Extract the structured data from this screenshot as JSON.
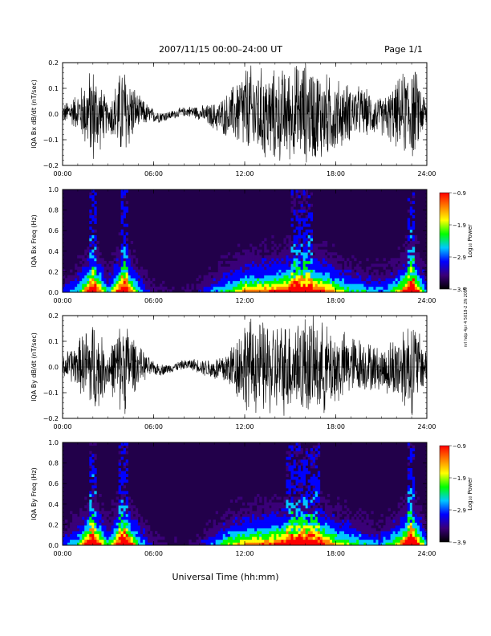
{
  "header": {
    "title": "2007/11/15  00:00–24:00 UT",
    "page": "Page 1/1"
  },
  "side_note": "nrl hdp 4pr 4 5018-2 2N 2019",
  "colors": {
    "trace": "#000000",
    "spectrogram_background": "#22004a",
    "colormap": [
      "#000000",
      "#3a0078",
      "#0000ff",
      "#00c8ff",
      "#00ff00",
      "#ffff00",
      "#ff8000",
      "#ff0000"
    ]
  },
  "chart_data": [
    {
      "type": "line",
      "ylabel": "IQA Bx dB/dt (nT/sec)",
      "xticks": [
        "00:00",
        "06:00",
        "12:00",
        "18:00",
        "24:00"
      ],
      "yticks": [
        "0.2",
        "0.1",
        "0.0",
        "−0.1",
        "−0.2"
      ],
      "xlim": [
        0,
        24
      ],
      "ylim": [
        -0.2,
        0.2
      ],
      "x": [
        0,
        1,
        2,
        3,
        4,
        5,
        6,
        7,
        8,
        9,
        10,
        11,
        12,
        13,
        14,
        15,
        16,
        17,
        18,
        19,
        20,
        21,
        22,
        23,
        24
      ],
      "envelope": [
        0.04,
        0.08,
        0.22,
        0.06,
        0.22,
        0.07,
        0.03,
        0.02,
        0.02,
        0.03,
        0.06,
        0.1,
        0.2,
        0.2,
        0.2,
        0.2,
        0.22,
        0.2,
        0.16,
        0.12,
        0.1,
        0.08,
        0.14,
        0.22,
        0.06
      ]
    },
    {
      "type": "heatmap",
      "ylabel": "IQA Bx Freq (Hz)",
      "xticks": [
        "00:00",
        "06:00",
        "12:00",
        "18:00",
        "24:00"
      ],
      "yticks": [
        "1.0",
        "0.8",
        "0.6",
        "0.4",
        "0.2",
        "0.0"
      ],
      "xlim": [
        0,
        24
      ],
      "ylim": [
        0.0,
        1.0
      ],
      "colorbar": {
        "label": "Log₁₀ Power",
        "ticks": [
          "−0.9",
          "−1.9",
          "−2.9",
          "−3.9"
        ],
        "range": [
          -3.9,
          -0.9
        ]
      },
      "activity_x": [
        0,
        1,
        2,
        3,
        4,
        5,
        6,
        7,
        8,
        9,
        10,
        11,
        12,
        13,
        14,
        15,
        16,
        17,
        18,
        19,
        20,
        21,
        22,
        23,
        24
      ],
      "activity": [
        0.2,
        0.35,
        0.9,
        0.3,
        0.95,
        0.35,
        0.15,
        0.1,
        0.1,
        0.15,
        0.3,
        0.45,
        0.6,
        0.65,
        0.7,
        0.8,
        0.85,
        0.75,
        0.55,
        0.4,
        0.35,
        0.3,
        0.45,
        0.95,
        0.25
      ]
    },
    {
      "type": "line",
      "ylabel": "IQA By dB/dt (nT/sec)",
      "xticks": [
        "00:00",
        "06:00",
        "12:00",
        "18:00",
        "24:00"
      ],
      "yticks": [
        "0.2",
        "0.1",
        "0.0",
        "−0.1",
        "−0.2"
      ],
      "xlim": [
        0,
        24
      ],
      "ylim": [
        -0.2,
        0.2
      ],
      "x": [
        0,
        1,
        2,
        3,
        4,
        5,
        6,
        7,
        8,
        9,
        10,
        11,
        12,
        13,
        14,
        15,
        16,
        17,
        18,
        19,
        20,
        21,
        22,
        23,
        24
      ],
      "envelope": [
        0.05,
        0.1,
        0.22,
        0.08,
        0.22,
        0.08,
        0.03,
        0.02,
        0.02,
        0.03,
        0.05,
        0.09,
        0.2,
        0.2,
        0.2,
        0.2,
        0.22,
        0.2,
        0.17,
        0.13,
        0.11,
        0.09,
        0.15,
        0.22,
        0.07
      ]
    },
    {
      "type": "heatmap",
      "ylabel": "IQA By Freq (Hz)",
      "xticks": [
        "00:00",
        "06:00",
        "12:00",
        "18:00",
        "24:00"
      ],
      "yticks": [
        "1.0",
        "0.8",
        "0.6",
        "0.4",
        "0.2",
        "0.0"
      ],
      "xlim": [
        0,
        24
      ],
      "ylim": [
        0.0,
        1.0
      ],
      "colorbar": {
        "label": "Log₁₀ Power",
        "ticks": [
          "−0.9",
          "−1.9",
          "−2.9",
          "−3.9"
        ],
        "range": [
          -3.9,
          -0.9
        ]
      },
      "activity_x": [
        0,
        1,
        2,
        3,
        4,
        5,
        6,
        7,
        8,
        9,
        10,
        11,
        12,
        13,
        14,
        15,
        16,
        17,
        18,
        19,
        20,
        21,
        22,
        23,
        24
      ],
      "activity": [
        0.25,
        0.4,
        0.95,
        0.35,
        0.95,
        0.4,
        0.15,
        0.1,
        0.1,
        0.15,
        0.3,
        0.5,
        0.6,
        0.65,
        0.7,
        0.85,
        0.85,
        0.8,
        0.55,
        0.45,
        0.35,
        0.3,
        0.5,
        0.95,
        0.3
      ]
    }
  ],
  "xlabel": "Universal Time (hh:mm)"
}
